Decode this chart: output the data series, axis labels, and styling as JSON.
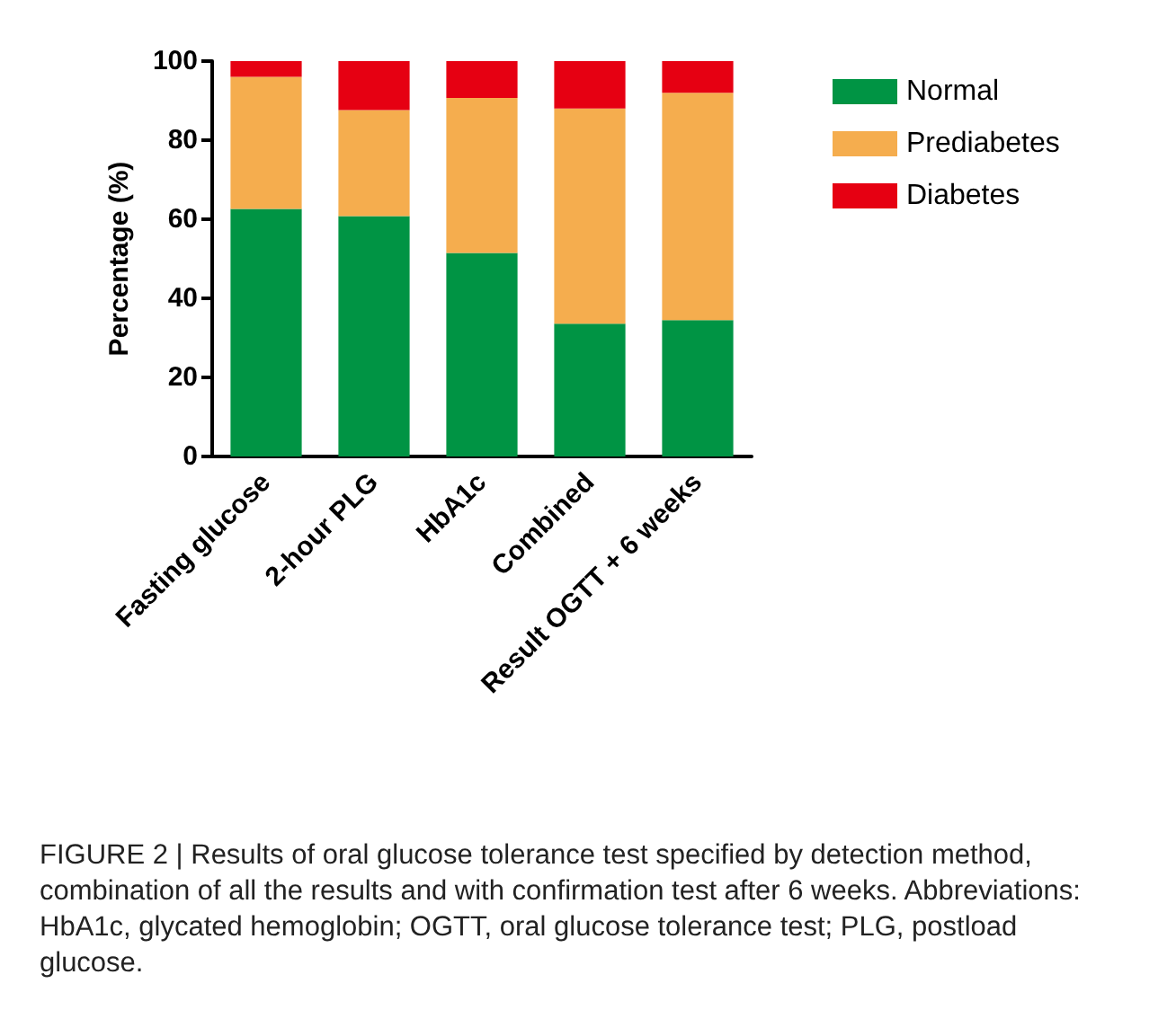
{
  "chart_data": {
    "type": "bar",
    "stacked": true,
    "ylabel": "Percentage (%)",
    "categories": [
      "Fasting glucose",
      "2-hour PLG",
      "HbA1c",
      "Combined",
      "Result OGTT + 6 weeks"
    ],
    "series": [
      {
        "name": "Normal",
        "color": "#009444",
        "values": [
          62.6,
          60.8,
          51.5,
          33.6,
          34.5
        ]
      },
      {
        "name": "Prediabetes",
        "color": "#f5ad4e",
        "values": [
          33.4,
          26.8,
          39.2,
          54.4,
          57.5
        ]
      },
      {
        "name": "Diabetes",
        "color": "#e60012",
        "values": [
          4,
          12.4,
          9.3,
          12,
          8
        ]
      }
    ],
    "ylim": [
      0,
      100
    ],
    "yticks": [
      0,
      20,
      40,
      60,
      80,
      100
    ],
    "grid": false,
    "legend": "top right",
    "annotations": [
      "FIGURE 2 | Results of oral glucose tolerance test specified by detection method, combination of all the results and with confirmation test after 6 weeks. Abbreviations: HbA1c, glycated hemoglobin; OGTT, oral glucose tolerance test; PLG, postload glucose."
    ]
  }
}
